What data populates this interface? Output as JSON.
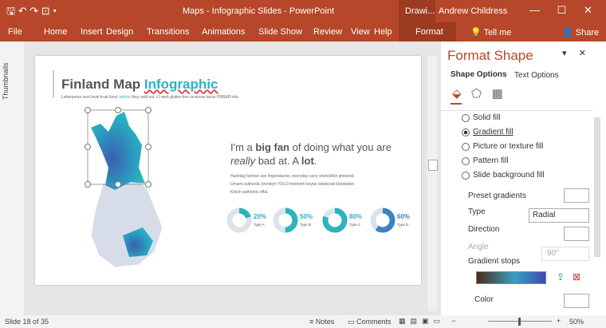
{
  "window": {
    "title": "Maps - Infographic Slides - PowerPoint",
    "context_tab": "Drawi...",
    "user": "Andrew Childress"
  },
  "ribbon": {
    "tabs": [
      "File",
      "Home",
      "Insert",
      "Design",
      "Transitions",
      "Animations",
      "Slide Show",
      "Review",
      "View",
      "Help",
      "Format"
    ],
    "tell_me": "Tell me",
    "share": "Share"
  },
  "thumbnails": "Thumbnails",
  "slide": {
    "title": [
      "Finland Map",
      "Infographic"
    ],
    "subtitle": [
      "Letterpress next level trust fund, ",
      "before",
      " they sold out +1 meh gluten-free locavore tacos PBR&B tofu."
    ],
    "heading": [
      "I'm a ",
      "big fan",
      " of doing what you are",
      "really",
      " bad at. A ",
      "lot",
      "."
    ],
    "body": [
      "Hashtag fashion axe fingerstache, everyday carry shoreditch pinterest.",
      "Umami authentic brooklyn YOLO heirloom keytar waistcoat kickstarter.",
      "Kitsch authentic offal."
    ],
    "stats": [
      {
        "value": 20,
        "label": "20%",
        "type": "Type A"
      },
      {
        "value": 50,
        "label": "50%",
        "type": "Type B"
      },
      {
        "value": 80,
        "label": "80%",
        "type": "Type C"
      },
      {
        "value": 60,
        "label": "60%",
        "type": "Type D"
      }
    ]
  },
  "pane": {
    "title": "Format Shape",
    "tabs": [
      "Shape Options",
      "Text Options"
    ],
    "fill_options": [
      "Solid fill",
      "Gradient fill",
      "Picture or texture fill",
      "Pattern fill",
      "Slide background fill"
    ],
    "preset_gradients": "Preset gradients",
    "type_label": "Type",
    "type_value": "Radial",
    "direction": "Direction",
    "angle": "Angle",
    "angle_value": "90°",
    "gradient_stops": "Gradient stops",
    "color": "Color"
  },
  "status": {
    "slide": "Slide 18 of 35",
    "notes": "Notes",
    "comments": "Comments",
    "zoom": "50%"
  }
}
